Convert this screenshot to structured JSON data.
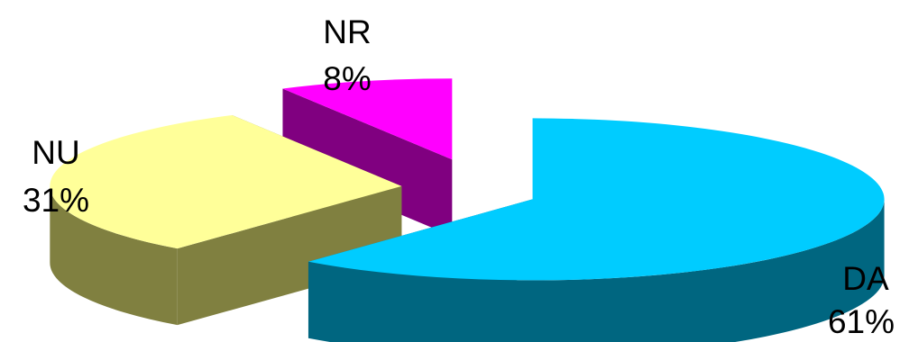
{
  "chart_data": {
    "type": "pie",
    "style": "3d-exploded",
    "slices": [
      {
        "label": "DA",
        "value": 61,
        "percent_text": "61%",
        "top_color": "#00ccff",
        "side_color": "#006680"
      },
      {
        "label": "NU",
        "value": 31,
        "percent_text": "31%",
        "top_color": "#ffff99",
        "side_color": "#808040"
      },
      {
        "label": "NR",
        "value": 8,
        "percent_text": "8%",
        "top_color": "#ff00ff",
        "side_color": "#800080"
      }
    ]
  }
}
